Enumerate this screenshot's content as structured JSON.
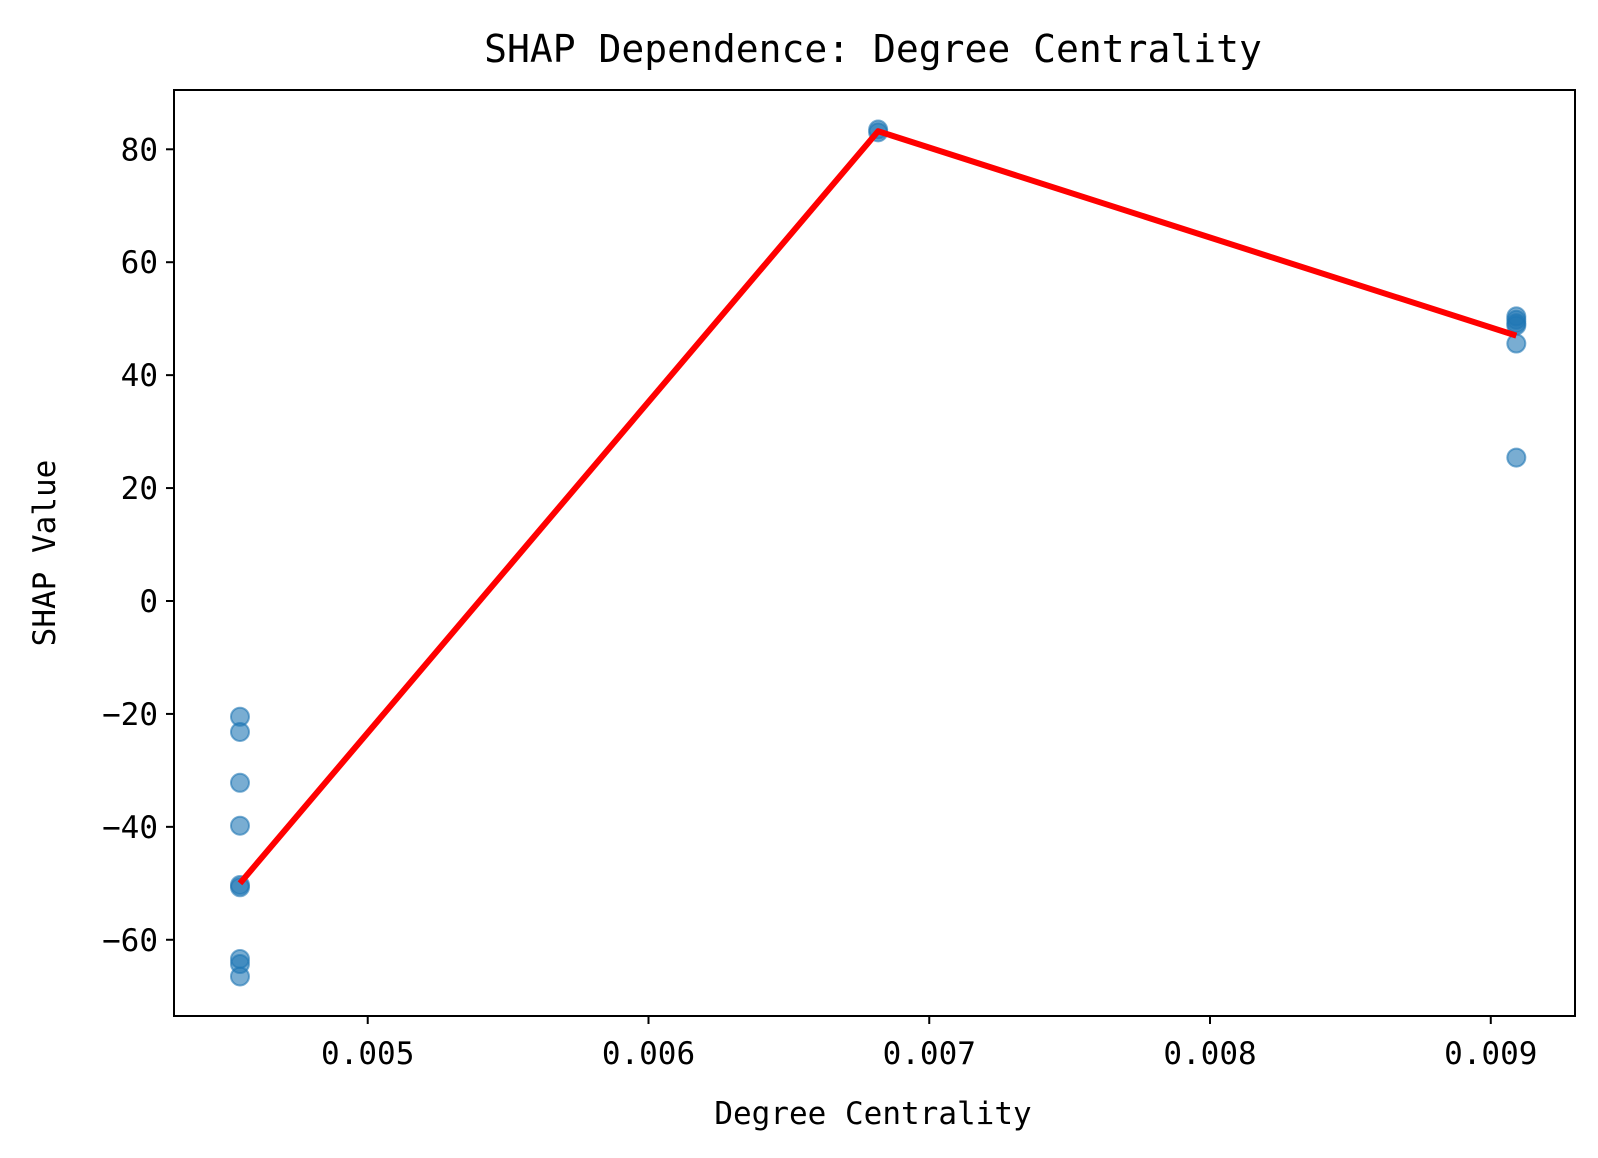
{
  "chart_data": {
    "type": "scatter",
    "title": "SHAP Dependence: Degree Centrality",
    "xlabel": "Degree Centrality",
    "ylabel": "SHAP Value",
    "xlim": [
      0.00431,
      0.0093
    ],
    "ylim": [
      -73.5,
      90.5
    ],
    "xticks": [
      {
        "value": 0.005,
        "label": "0.005"
      },
      {
        "value": 0.006,
        "label": "0.006"
      },
      {
        "value": 0.007,
        "label": "0.007"
      },
      {
        "value": 0.008,
        "label": "0.008"
      },
      {
        "value": 0.009,
        "label": "0.009"
      }
    ],
    "yticks": [
      {
        "value": -60,
        "label": "−60"
      },
      {
        "value": -40,
        "label": "−40"
      },
      {
        "value": -20,
        "label": "−20"
      },
      {
        "value": 0,
        "label": "0"
      },
      {
        "value": 20,
        "label": "20"
      },
      {
        "value": 40,
        "label": "40"
      },
      {
        "value": 60,
        "label": "60"
      },
      {
        "value": 80,
        "label": "80"
      }
    ],
    "grid": false,
    "scatter": {
      "color": "#1f77b4",
      "opacity": 0.6,
      "points": [
        {
          "x": 0.004545,
          "y": -20.5
        },
        {
          "x": 0.004545,
          "y": -23.2
        },
        {
          "x": 0.004545,
          "y": -32.2
        },
        {
          "x": 0.004545,
          "y": -39.8
        },
        {
          "x": 0.004545,
          "y": -50.3
        },
        {
          "x": 0.004545,
          "y": -50.7
        },
        {
          "x": 0.004545,
          "y": -63.4
        },
        {
          "x": 0.004545,
          "y": -64.3
        },
        {
          "x": 0.004545,
          "y": -66.5
        },
        {
          "x": 0.006818,
          "y": 83.0
        },
        {
          "x": 0.006818,
          "y": 83.5
        },
        {
          "x": 0.009091,
          "y": 50.4
        },
        {
          "x": 0.009091,
          "y": 49.8
        },
        {
          "x": 0.009091,
          "y": 49.2
        },
        {
          "x": 0.009091,
          "y": 48.8
        },
        {
          "x": 0.009091,
          "y": 45.6
        },
        {
          "x": 0.009091,
          "y": 25.4
        }
      ]
    },
    "line": {
      "color": "#ff0000",
      "points": [
        {
          "x": 0.004545,
          "y": -50.0
        },
        {
          "x": 0.006818,
          "y": 83.2
        },
        {
          "x": 0.009091,
          "y": 47.0
        }
      ]
    }
  }
}
